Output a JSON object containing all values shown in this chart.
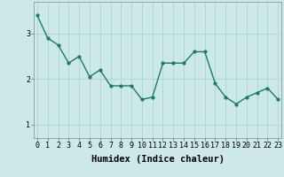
{
  "x": [
    0,
    1,
    2,
    3,
    4,
    5,
    6,
    7,
    8,
    9,
    10,
    11,
    12,
    13,
    14,
    15,
    16,
    17,
    18,
    19,
    20,
    21,
    22,
    23
  ],
  "y": [
    3.4,
    2.9,
    2.75,
    2.35,
    2.5,
    2.05,
    2.2,
    1.85,
    1.85,
    1.85,
    1.55,
    1.6,
    2.35,
    2.35,
    2.35,
    2.6,
    2.6,
    1.9,
    1.6,
    1.45,
    1.6,
    1.7,
    1.8,
    1.55
  ],
  "line_color": "#1a7a6e",
  "marker": "o",
  "markersize": 2.0,
  "linewidth": 1.0,
  "bg_color": "#cce9e7",
  "grid_color": "#aad4d0",
  "xlabel": "Humidex (Indice chaleur)",
  "xlabel_fontsize": 7.5,
  "xlabel_fontweight": "bold",
  "yticks": [
    1,
    2,
    3
  ],
  "xticks": [
    0,
    1,
    2,
    3,
    4,
    5,
    6,
    7,
    8,
    9,
    10,
    11,
    12,
    13,
    14,
    15,
    16,
    17,
    18,
    19,
    20,
    21,
    22,
    23
  ],
  "ylim": [
    0.7,
    3.7
  ],
  "xlim": [
    -0.3,
    23.3
  ],
  "tick_fontsize": 6.0,
  "font_family": "monospace"
}
